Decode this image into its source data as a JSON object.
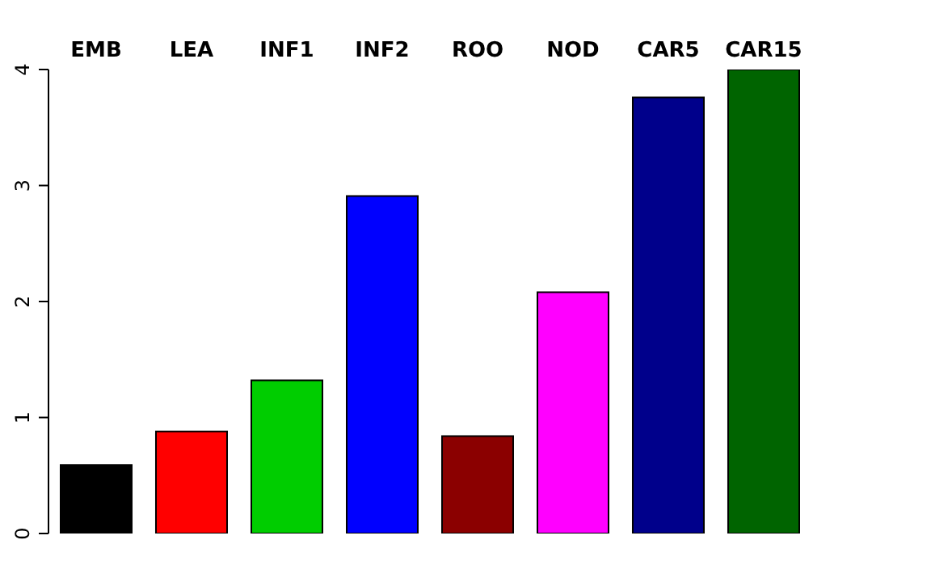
{
  "chart_data": {
    "type": "bar",
    "categories": [
      "EMB",
      "LEA",
      "INF1",
      "INF2",
      "ROO",
      "NOD",
      "CAR5",
      "CAR15"
    ],
    "values": [
      0.59,
      0.88,
      1.32,
      2.91,
      0.84,
      2.08,
      3.76,
      4.0
    ],
    "colors": [
      "#000000",
      "#ff0000",
      "#00cd00",
      "#0000ff",
      "#8b0000",
      "#ff00ff",
      "#00008b",
      "#006400"
    ],
    "ylim": [
      0,
      4
    ],
    "yticks": [
      0,
      1,
      2,
      3,
      4
    ],
    "grid": false,
    "legend": false
  }
}
